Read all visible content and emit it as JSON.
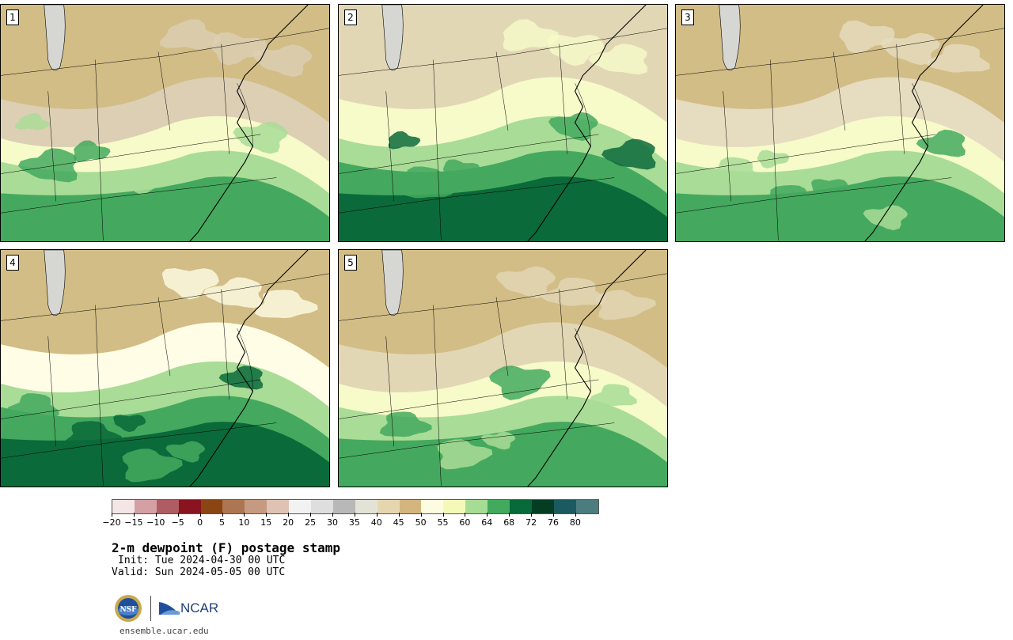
{
  "panels": [
    {
      "label": "1",
      "palette": [
        "#d2bd86",
        "#dccfb4",
        "#f6fbc9",
        "#a9dc97",
        "#44a95e"
      ]
    },
    {
      "label": "2",
      "palette": [
        "#e2d7b5",
        "#f6fbc9",
        "#a9dc97",
        "#44a95e",
        "#0b6a3a"
      ]
    },
    {
      "label": "3",
      "palette": [
        "#d2bd86",
        "#e6dcbf",
        "#f6fbc9",
        "#a9dc97",
        "#44a95e"
      ]
    },
    {
      "label": "4",
      "palette": [
        "#d2bd86",
        "#fffde6",
        "#a9dc97",
        "#44a95e",
        "#0b6a3a"
      ]
    },
    {
      "label": "5",
      "palette": [
        "#d2bd86",
        "#e2d7b5",
        "#f6fbc9",
        "#a9dc97",
        "#44a95e"
      ]
    }
  ],
  "colorbar": {
    "colors": [
      "#f4e6e6",
      "#d4a0a4",
      "#b05c63",
      "#8a1320",
      "#8b4513",
      "#ad7652",
      "#c69a80",
      "#e0c2b4",
      "#f2f2f2",
      "#dedede",
      "#b8b8b8",
      "#e2e2d6",
      "#e6d6b0",
      "#d3b57d",
      "#fefce0",
      "#f5f9b8",
      "#a6dc94",
      "#42aa5c",
      "#08693a",
      "#043d23",
      "#1b5a60",
      "#4c7d7e"
    ],
    "tick_labels": [
      "−20",
      "−15",
      "−10",
      "−5",
      "0",
      "5",
      "10",
      "15",
      "20",
      "25",
      "30",
      "35",
      "40",
      "45",
      "50",
      "55",
      "60",
      "64",
      "68",
      "72",
      "76",
      "80"
    ]
  },
  "title": "2-m dewpoint (F) postage stamp",
  "init": "Init: Tue 2024-04-30 00 UTC",
  "valid": "Valid: Sun 2024-05-05 00 UTC",
  "logos": {
    "nsf": "NSF",
    "ncar": "NCAR"
  },
  "site": "ensemble.ucar.edu"
}
